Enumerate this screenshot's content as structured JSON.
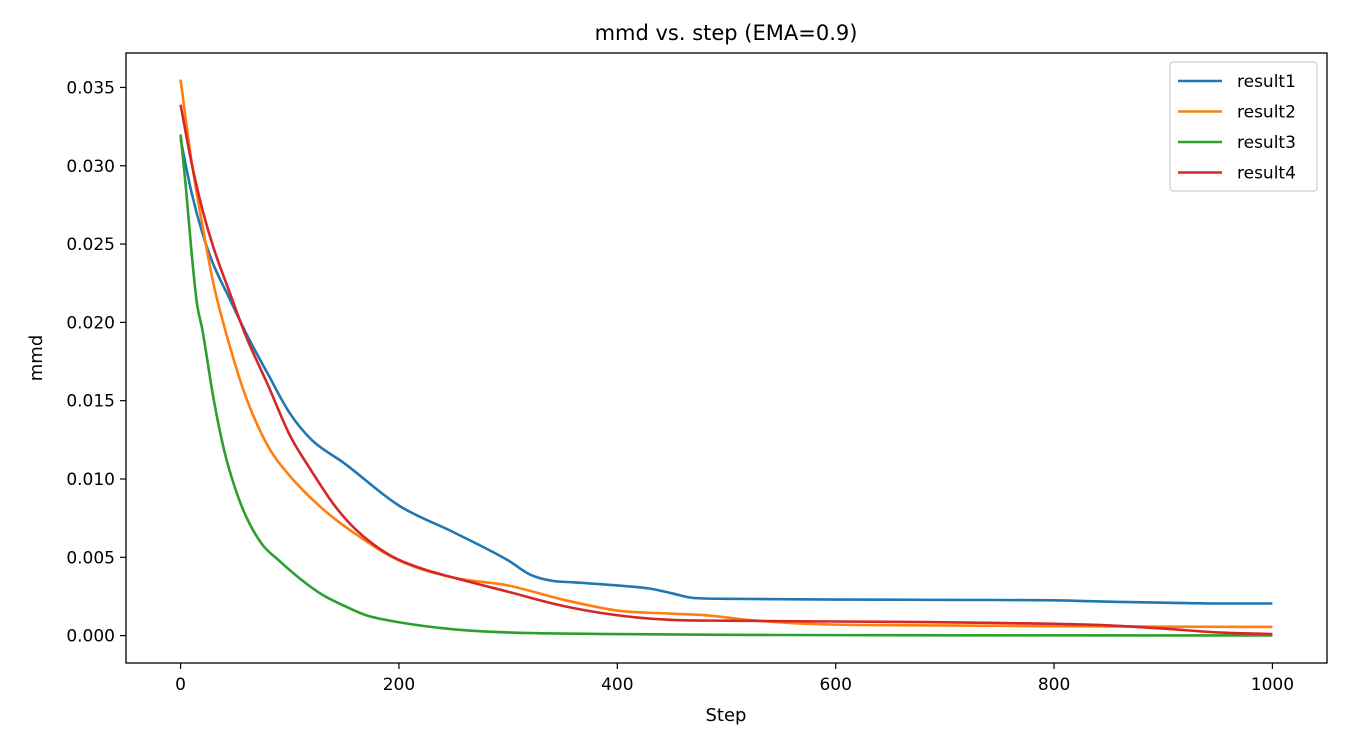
{
  "chart_data": {
    "type": "line",
    "title": "mmd vs. step (EMA=0.9)",
    "xlabel": "Step",
    "ylabel": "mmd",
    "xlim": [
      -50,
      1050
    ],
    "ylim": [
      -0.00175,
      0.0372
    ],
    "xticks": [
      0,
      200,
      400,
      600,
      800,
      1000
    ],
    "xtick_labels": [
      "0",
      "200",
      "400",
      "600",
      "800",
      "1000"
    ],
    "yticks": [
      0.0,
      0.005,
      0.01,
      0.015,
      0.02,
      0.025,
      0.03,
      0.035
    ],
    "ytick_labels": [
      "0.000",
      "0.005",
      "0.010",
      "0.015",
      "0.020",
      "0.025",
      "0.030",
      "0.035"
    ],
    "grid": false,
    "legend_position": "top-right",
    "series": [
      {
        "name": "result1",
        "color": "#1f77b4",
        "x": [
          0,
          10,
          20,
          30,
          45,
          60,
          80,
          100,
          120,
          150,
          200,
          250,
          300,
          320,
          340,
          360,
          400,
          430,
          450,
          470,
          500,
          600,
          700,
          800,
          830,
          860,
          900,
          950,
          1000
        ],
        "y": [
          0.0317,
          0.0283,
          0.0257,
          0.0237,
          0.0215,
          0.0193,
          0.0167,
          0.0142,
          0.0125,
          0.011,
          0.0083,
          0.0066,
          0.0048,
          0.0039,
          0.0035,
          0.0034,
          0.0032,
          0.003,
          0.0027,
          0.0024,
          0.00235,
          0.0023,
          0.00228,
          0.00225,
          0.0022,
          0.00215,
          0.0021,
          0.00205,
          0.00205
        ]
      },
      {
        "name": "result2",
        "color": "#ff7f0e",
        "x": [
          0,
          10,
          20,
          30,
          45,
          60,
          80,
          100,
          130,
          160,
          200,
          250,
          300,
          350,
          400,
          450,
          480,
          520,
          560,
          600,
          700,
          800,
          900,
          1000
        ],
        "y": [
          0.0355,
          0.0303,
          0.0262,
          0.0225,
          0.0185,
          0.0152,
          0.0121,
          0.0102,
          0.0081,
          0.0065,
          0.0048,
          0.0037,
          0.0032,
          0.0023,
          0.0016,
          0.0014,
          0.0013,
          0.001,
          0.0008,
          0.0007,
          0.00065,
          0.0006,
          0.00057,
          0.00055
        ]
      },
      {
        "name": "result3",
        "color": "#2ca02c",
        "x": [
          0,
          5,
          10,
          15,
          20,
          30,
          40,
          50,
          60,
          75,
          90,
          110,
          130,
          150,
          170,
          200,
          250,
          300,
          400,
          500,
          600,
          700,
          800,
          900,
          1000
        ],
        "y": [
          0.032,
          0.0285,
          0.0245,
          0.0212,
          0.0195,
          0.0152,
          0.0118,
          0.0094,
          0.0076,
          0.0058,
          0.0048,
          0.0036,
          0.0026,
          0.0019,
          0.0013,
          0.00085,
          0.0004,
          0.0002,
          0.0001,
          5e-05,
          3e-05,
          2e-05,
          2e-05,
          1e-05,
          1e-05
        ]
      },
      {
        "name": "result4",
        "color": "#d62728",
        "x": [
          0,
          10,
          20,
          30,
          45,
          60,
          80,
          100,
          120,
          140,
          160,
          190,
          220,
          250,
          300,
          350,
          400,
          450,
          500,
          600,
          700,
          800,
          850,
          900,
          950,
          1000
        ],
        "y": [
          0.0339,
          0.0302,
          0.0272,
          0.0248,
          0.0219,
          0.0191,
          0.016,
          0.0128,
          0.0105,
          0.0084,
          0.0068,
          0.0052,
          0.0043,
          0.0037,
          0.0028,
          0.0019,
          0.0013,
          0.001,
          0.00095,
          0.0009,
          0.00085,
          0.00075,
          0.00065,
          0.00045,
          0.0002,
          0.0001
        ]
      }
    ]
  }
}
